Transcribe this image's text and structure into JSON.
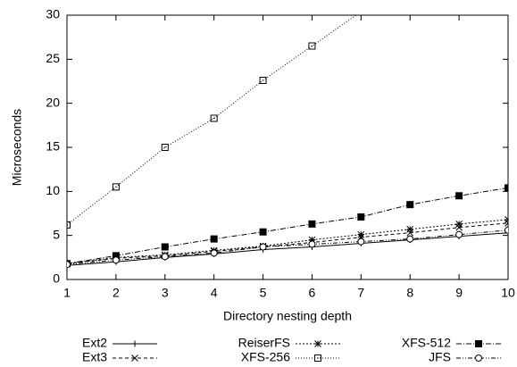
{
  "chart_data": {
    "type": "line",
    "x_label": "Directory nesting depth",
    "y_label": "Microseconds",
    "x": [
      1,
      2,
      3,
      4,
      5,
      6,
      7,
      8,
      9,
      10
    ],
    "xlim": [
      1,
      10
    ],
    "xticks": [
      1,
      2,
      3,
      4,
      5,
      6,
      7,
      8,
      9,
      10
    ],
    "ylim": [
      0,
      30
    ],
    "yticks": [
      0,
      5,
      10,
      15,
      20,
      25,
      30
    ],
    "legend": "bottom",
    "series": [
      {
        "name": "Ext2",
        "color": "#000000",
        "dash": "none",
        "marker": "plus",
        "values": [
          1.6,
          2.0,
          2.5,
          2.9,
          3.4,
          3.7,
          4.1,
          4.5,
          4.9,
          5.3
        ]
      },
      {
        "name": "Ext3",
        "color": "#000000",
        "dash": "4,3",
        "marker": "cross",
        "values": [
          1.8,
          2.4,
          2.7,
          3.2,
          3.7,
          4.2,
          4.8,
          5.3,
          5.9,
          6.4
        ]
      },
      {
        "name": "ReiserFS",
        "color": "#000000",
        "dash": "2,2",
        "marker": "star",
        "values": [
          1.8,
          2.5,
          2.8,
          3.3,
          3.8,
          4.5,
          5.1,
          5.7,
          6.3,
          6.8
        ]
      },
      {
        "name": "XFS-256",
        "color": "#000000",
        "dash": "1,2",
        "marker": "square-dot",
        "values": [
          6.2,
          10.5,
          15.0,
          18.3,
          22.6,
          26.5,
          30.4,
          null,
          null,
          null
        ]
      },
      {
        "name": "XFS-512",
        "color": "#000000",
        "dash": "6,2,1,2",
        "marker": "filled-square",
        "values": [
          1.8,
          2.7,
          3.7,
          4.6,
          5.4,
          6.3,
          7.1,
          8.5,
          9.5,
          10.4
        ]
      },
      {
        "name": "JFS",
        "color": "#000000",
        "dash": "5,2,1,2,1,2",
        "marker": "circle",
        "values": [
          1.7,
          2.2,
          2.6,
          3.0,
          3.7,
          4.0,
          4.3,
          4.6,
          5.1,
          5.6
        ]
      }
    ]
  }
}
